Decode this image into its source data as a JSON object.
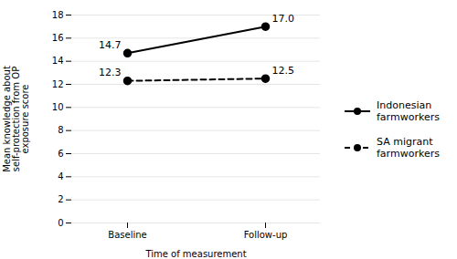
{
  "chart_data": {
    "type": "line",
    "categories": [
      "Baseline",
      "Follow-up"
    ],
    "series": [
      {
        "name": "Indonesian\nfarmworkers",
        "color": "black",
        "line_style": "solid",
        "marker": "circle",
        "values": [
          14.7,
          17.0
        ],
        "value_labels": [
          "14.7",
          "17.0"
        ]
      },
      {
        "name": "SA migrant\nfarmworkers",
        "color": "black",
        "line_style": "dashed",
        "marker": "circle",
        "values": [
          12.3,
          12.5
        ],
        "value_labels": [
          "12.3",
          "12.5"
        ]
      }
    ],
    "xlabel": "Time of measurement",
    "ylabel": "Mean knowledge about\nself-protection from OP\nexposure score",
    "ylim": [
      0,
      18
    ],
    "yticks": [
      0,
      2,
      4,
      6,
      8,
      10,
      12,
      14,
      16,
      18
    ],
    "grid": true,
    "legend": "right",
    "data_labels": true
  }
}
